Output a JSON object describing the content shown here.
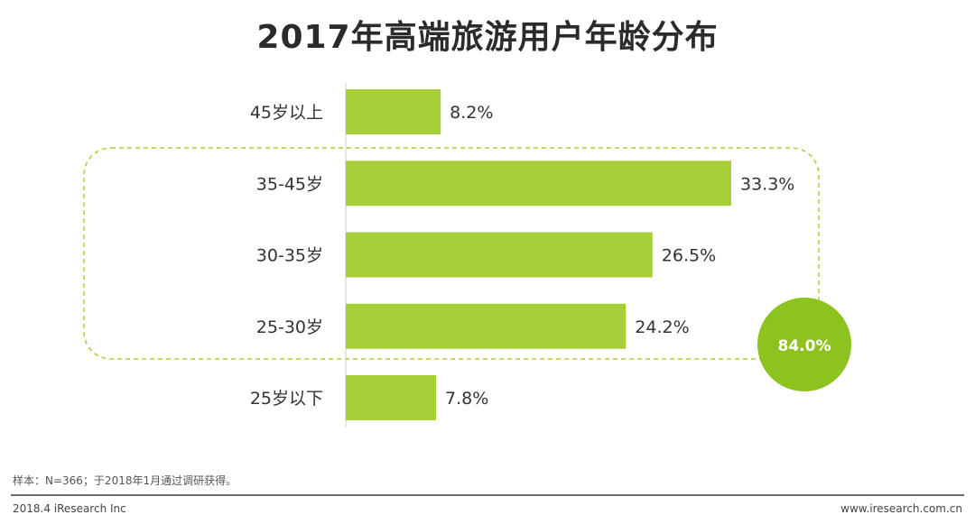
{
  "title": "2017年高端旅游用户年龄分布",
  "chart_data": {
    "type": "bar",
    "orientation": "horizontal",
    "categories": [
      "45岁以上",
      "35-45岁",
      "30-35岁",
      "25-30岁",
      "25岁以下"
    ],
    "values": [
      8.2,
      33.3,
      26.5,
      24.2,
      7.8
    ],
    "value_labels": [
      "8.2%",
      "33.3%",
      "26.5%",
      "24.2%",
      "7.8%"
    ],
    "unit": "%",
    "bar_color": "#a6cf37",
    "highlight": {
      "categories": [
        "35-45岁",
        "30-35岁",
        "25-30岁"
      ],
      "label": "84.0%",
      "color": "#8dc21f"
    }
  },
  "note": "样本：N=366；于2018年1月通过调研获得。",
  "footer": {
    "left": "2018.4 iResearch Inc",
    "right": "www.iresearch.com.cn"
  }
}
